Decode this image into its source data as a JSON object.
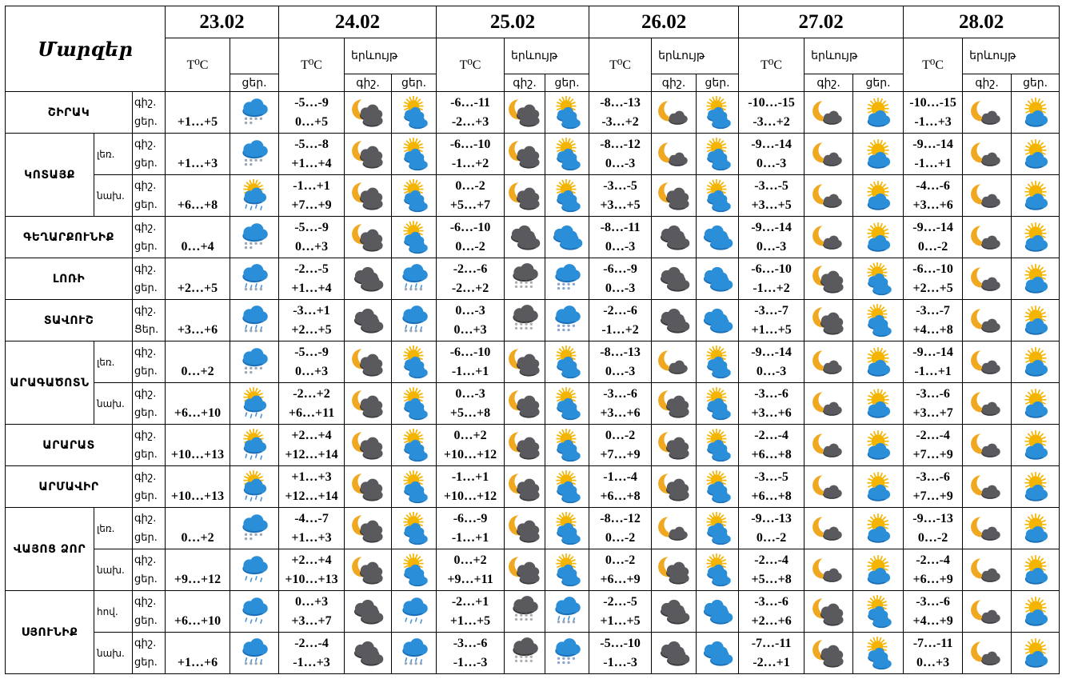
{
  "header": {
    "title": "Մարզեր",
    "dates": [
      "23.02",
      "24.02",
      "25.02",
      "26.02",
      "27.02",
      "28.02"
    ],
    "temp_label": "T⁰C",
    "phenomenon_label": "երևույթ",
    "night_label": "գիշ.",
    "day_label": "ցեր."
  },
  "rows": [
    {
      "region": "ՇԻՐԱԿ",
      "sub": "",
      "night": "գիշ.",
      "day": "ցեր.",
      "d23": {
        "t": "+1…+5",
        "icon": "rain-snow"
      },
      "days": [
        {
          "n": "-5…-9",
          "d": "0…+5",
          "in": "moon-clouds",
          "id": "sun-clouds"
        },
        {
          "n": "-6…-11",
          "d": "-2…+3",
          "in": "moon-clouds",
          "id": "sun-clouds"
        },
        {
          "n": "-8…-13",
          "d": "-3…+2",
          "in": "moon-cloud",
          "id": "sun-clouds"
        },
        {
          "n": "-10…-15",
          "d": "-3…+2",
          "in": "moon-cloud",
          "id": "sun-cloud"
        },
        {
          "n": "-10…-15",
          "d": "-1…+3",
          "in": "moon-cloud",
          "id": "sun-cloud"
        }
      ]
    },
    {
      "region": "ԿՈՏԱՅՔ",
      "sub": "լեռ.",
      "night": "գիշ.",
      "day": "ցեր.",
      "d23": {
        "t": "+1…+3",
        "icon": "rain-snow"
      },
      "days": [
        {
          "n": "-5…-8",
          "d": "+1…+4",
          "in": "moon-clouds",
          "id": "sun-clouds"
        },
        {
          "n": "-6…-10",
          "d": "-1…+2",
          "in": "moon-clouds",
          "id": "sun-clouds"
        },
        {
          "n": "-8…-12",
          "d": "0…-3",
          "in": "moon-cloud",
          "id": "sun-clouds"
        },
        {
          "n": "-9…-14",
          "d": "0…-3",
          "in": "moon-cloud",
          "id": "sun-cloud"
        },
        {
          "n": "-9…-14",
          "d": "-1…+1",
          "in": "moon-cloud",
          "id": "sun-cloud"
        }
      ]
    },
    {
      "region": "ԿՈՏԱՅՔ",
      "sub": "նախ.",
      "night": "գիշ.",
      "day": "ցեր.",
      "d23": {
        "t": "+6…+8",
        "icon": "sun-rain"
      },
      "days": [
        {
          "n": "-1…+1",
          "d": "+7…+9",
          "in": "moon-clouds",
          "id": "sun-clouds"
        },
        {
          "n": "0…-2",
          "d": "+5…+7",
          "in": "moon-clouds",
          "id": "sun-clouds"
        },
        {
          "n": "-3…-5",
          "d": "+3…+5",
          "in": "moon-clouds",
          "id": "sun-clouds"
        },
        {
          "n": "-3…-5",
          "d": "+3…+5",
          "in": "moon-cloud",
          "id": "sun-cloud"
        },
        {
          "n": "-4…-6",
          "d": "+3…+6",
          "in": "moon-cloud",
          "id": "sun-cloud"
        }
      ]
    },
    {
      "region": "ԳԵՂԱՐՔՈՒՆԻՔ",
      "sub": "",
      "night": "գիշ.",
      "day": "ցեր.",
      "d23": {
        "t": "0…+4",
        "icon": "rain-snow"
      },
      "days": [
        {
          "n": "-5…-9",
          "d": "0…+3",
          "in": "moon-clouds",
          "id": "sun-clouds"
        },
        {
          "n": "-6…-10",
          "d": "0…-2",
          "in": "dark-clouds",
          "id": "blue-clouds"
        },
        {
          "n": "-8…-11",
          "d": "0…-3",
          "in": "dark-clouds",
          "id": "blue-clouds"
        },
        {
          "n": "-9…-14",
          "d": "0…-3",
          "in": "moon-cloud",
          "id": "sun-cloud"
        },
        {
          "n": "-9…-14",
          "d": "0…-2",
          "in": "moon-cloud",
          "id": "sun-cloud"
        }
      ]
    },
    {
      "region": "ԼՈՌԻ",
      "sub": "",
      "night": "գիշ.",
      "day": "ցեր.",
      "d23": {
        "t": "+2…+5",
        "icon": "heavy-rain-snow"
      },
      "days": [
        {
          "n": "-2…-5",
          "d": "+1…+4",
          "in": "dark-clouds",
          "id": "heavy-rain-snow"
        },
        {
          "n": "-2…-6",
          "d": "-2…+2",
          "in": "snow-dark",
          "id": "snow-blue"
        },
        {
          "n": "-6…-9",
          "d": "0…-3",
          "in": "dark-clouds",
          "id": "blue-clouds"
        },
        {
          "n": "-6…-10",
          "d": "-1…+2",
          "in": "moon-clouds",
          "id": "sun-clouds"
        },
        {
          "n": "-6…-10",
          "d": "+2…+5",
          "in": "moon-cloud",
          "id": "sun-cloud"
        }
      ]
    },
    {
      "region": "ՏԱՎՈՒՇ",
      "sub": "",
      "night": "գիշ.",
      "day": "Ցեր.",
      "d23": {
        "t": "+3…+6",
        "icon": "heavy-rain-snow"
      },
      "days": [
        {
          "n": "-3…+1",
          "d": "+2…+5",
          "in": "dark-clouds",
          "id": "heavy-rain-snow"
        },
        {
          "n": "0…-3",
          "d": "0…+3",
          "in": "snow-dark",
          "id": "snow-blue"
        },
        {
          "n": "-2…-6",
          "d": "-1…+2",
          "in": "dark-clouds",
          "id": "blue-clouds"
        },
        {
          "n": "-3…-7",
          "d": "+1…+5",
          "in": "moon-clouds",
          "id": "sun-clouds"
        },
        {
          "n": "-3…-7",
          "d": "+4…+8",
          "in": "moon-cloud",
          "id": "sun-cloud"
        }
      ]
    },
    {
      "region": "ԱՐԱԳԱԾՈՏՆ",
      "sub": "լեռ.",
      "night": "գիշ.",
      "day": "ցեր.",
      "d23": {
        "t": "0…+2",
        "icon": "rain-snow"
      },
      "days": [
        {
          "n": "-5…-9",
          "d": "0…+3",
          "in": "moon-clouds",
          "id": "sun-clouds"
        },
        {
          "n": "-6…-10",
          "d": "-1…+1",
          "in": "moon-clouds",
          "id": "sun-clouds"
        },
        {
          "n": "-8…-13",
          "d": "0…-3",
          "in": "moon-cloud",
          "id": "sun-clouds"
        },
        {
          "n": "-9…-14",
          "d": "0…-3",
          "in": "moon-cloud",
          "id": "sun-cloud"
        },
        {
          "n": "-9…-14",
          "d": "-1…+1",
          "in": "moon-cloud",
          "id": "sun-cloud"
        }
      ]
    },
    {
      "region": "ԱՐԱԳԱԾՈՏՆ",
      "sub": "նախ.",
      "night": "գիշ.",
      "day": "ցեր.",
      "d23": {
        "t": "+6…+10",
        "icon": "sun-rain"
      },
      "days": [
        {
          "n": "-2…+2",
          "d": "+6…+11",
          "in": "moon-clouds",
          "id": "sun-clouds"
        },
        {
          "n": "0…-3",
          "d": "+5…+8",
          "in": "moon-clouds",
          "id": "sun-clouds"
        },
        {
          "n": "-3…-6",
          "d": "+3…+6",
          "in": "moon-clouds",
          "id": "sun-clouds"
        },
        {
          "n": "-3…-6",
          "d": "+3…+6",
          "in": "moon-cloud",
          "id": "sun-cloud"
        },
        {
          "n": "-3…-6",
          "d": "+3…+7",
          "in": "moon-cloud",
          "id": "sun-cloud"
        }
      ]
    },
    {
      "region": "ԱՐԱՐԱՏ",
      "sub": "",
      "night": "գիշ.",
      "day": "ցեր.",
      "d23": {
        "t": "+10…+13",
        "icon": "sun-rain"
      },
      "days": [
        {
          "n": "+2…+4",
          "d": "+12…+14",
          "in": "moon-clouds",
          "id": "sun-clouds"
        },
        {
          "n": "0…+2",
          "d": "+10…+12",
          "in": "moon-clouds",
          "id": "sun-clouds"
        },
        {
          "n": "0…-2",
          "d": "+7…+9",
          "in": "moon-clouds",
          "id": "sun-clouds"
        },
        {
          "n": "-2…-4",
          "d": "+6…+8",
          "in": "moon-cloud",
          "id": "sun-cloud"
        },
        {
          "n": "-2…-4",
          "d": "+7…+9",
          "in": "moon-cloud",
          "id": "sun-cloud"
        }
      ]
    },
    {
      "region": "ԱՐՄԱՎԻՐ",
      "sub": "",
      "night": "գիշ.",
      "day": "ցեր.",
      "d23": {
        "t": "+10…+13",
        "icon": "sun-rain"
      },
      "days": [
        {
          "n": "+1…+3",
          "d": "+12…+14",
          "in": "moon-clouds",
          "id": "sun-clouds"
        },
        {
          "n": "-1…+1",
          "d": "+10…+12",
          "in": "moon-clouds",
          "id": "sun-clouds"
        },
        {
          "n": "-1…-4",
          "d": "+6…+8",
          "in": "moon-clouds",
          "id": "sun-clouds"
        },
        {
          "n": "-3…-5",
          "d": "+6…+8",
          "in": "moon-cloud",
          "id": "sun-cloud"
        },
        {
          "n": "-3…-6",
          "d": "+7…+9",
          "in": "moon-cloud",
          "id": "sun-cloud"
        }
      ]
    },
    {
      "region": "ՎԱՅՈՑ ՁՈՐ",
      "sub": "լեռ.",
      "night": "գիշ.",
      "day": "ցեր.",
      "d23": {
        "t": "0…+2",
        "icon": "rain-snow"
      },
      "days": [
        {
          "n": "-4…-7",
          "d": "+1…+3",
          "in": "moon-clouds",
          "id": "sun-clouds"
        },
        {
          "n": "-6…-9",
          "d": "-1…+1",
          "in": "moon-clouds",
          "id": "sun-clouds"
        },
        {
          "n": "-8…-12",
          "d": "0…-2",
          "in": "moon-cloud",
          "id": "sun-clouds"
        },
        {
          "n": "-9…-13",
          "d": "0…-2",
          "in": "moon-cloud",
          "id": "sun-cloud"
        },
        {
          "n": "-9…-13",
          "d": "0…-2",
          "in": "moon-cloud",
          "id": "sun-cloud"
        }
      ]
    },
    {
      "region": "ՎԱՅՈՑ ՁՈՐ",
      "sub": "նախ.",
      "night": "գիշ.",
      "day": "ցեր.",
      "d23": {
        "t": "+9…+12",
        "icon": "rain"
      },
      "days": [
        {
          "n": "+2…+4",
          "d": "+10…+13",
          "in": "moon-clouds",
          "id": "sun-clouds"
        },
        {
          "n": "0…+2",
          "d": "+9…+11",
          "in": "moon-clouds",
          "id": "sun-clouds"
        },
        {
          "n": "0…-2",
          "d": "+6…+9",
          "in": "moon-clouds",
          "id": "sun-clouds"
        },
        {
          "n": "-2…-4",
          "d": "+5…+8",
          "in": "moon-cloud",
          "id": "sun-cloud"
        },
        {
          "n": "-2…-4",
          "d": "+6…+9",
          "in": "moon-cloud",
          "id": "sun-cloud"
        }
      ]
    },
    {
      "region": "ՍՅՈՒՆԻՔ",
      "sub": "հով.",
      "night": "գիշ.",
      "day": "ցեր.",
      "d23": {
        "t": "+6…+10",
        "icon": "rain"
      },
      "days": [
        {
          "n": "0…+3",
          "d": "+3…+7",
          "in": "dark-clouds",
          "id": "rain"
        },
        {
          "n": "-2…+1",
          "d": "+1…+5",
          "in": "snow-dark",
          "id": "heavy-rain-snow"
        },
        {
          "n": "-2…-5",
          "d": "+1…+5",
          "in": "dark-clouds",
          "id": "blue-clouds"
        },
        {
          "n": "-3…-6",
          "d": "+2…+6",
          "in": "moon-clouds",
          "id": "sun-clouds"
        },
        {
          "n": "-3…-6",
          "d": "+4…+9",
          "in": "moon-cloud",
          "id": "sun-cloud"
        }
      ]
    },
    {
      "region": "ՍՅՈՒՆԻՔ",
      "sub": "նախ.",
      "night": "գիշ.",
      "day": "ցեր.",
      "d23": {
        "t": "+1…+6",
        "icon": "heavy-rain-snow"
      },
      "days": [
        {
          "n": "-2…-4",
          "d": "-1…+3",
          "in": "dark-clouds",
          "id": "heavy-rain-snow"
        },
        {
          "n": "-3…-6",
          "d": "-1…-3",
          "in": "snow-dark",
          "id": "snow-blue"
        },
        {
          "n": "-5…-10",
          "d": "-1…-3",
          "in": "dark-clouds",
          "id": "blue-clouds"
        },
        {
          "n": "-7…-11",
          "d": "-2…+1",
          "in": "moon-clouds",
          "id": "sun-clouds"
        },
        {
          "n": "-7…-11",
          "d": "0…+3",
          "in": "moon-cloud",
          "id": "sun-cloud"
        }
      ]
    }
  ],
  "colors": {
    "sun": "#f5b400",
    "moon": "#f0a820",
    "dark_cloud": "#5a5a5e",
    "blue_cloud": "#2a8fd8",
    "rain": "#4a90d0",
    "snow": "#9aa8b8"
  }
}
